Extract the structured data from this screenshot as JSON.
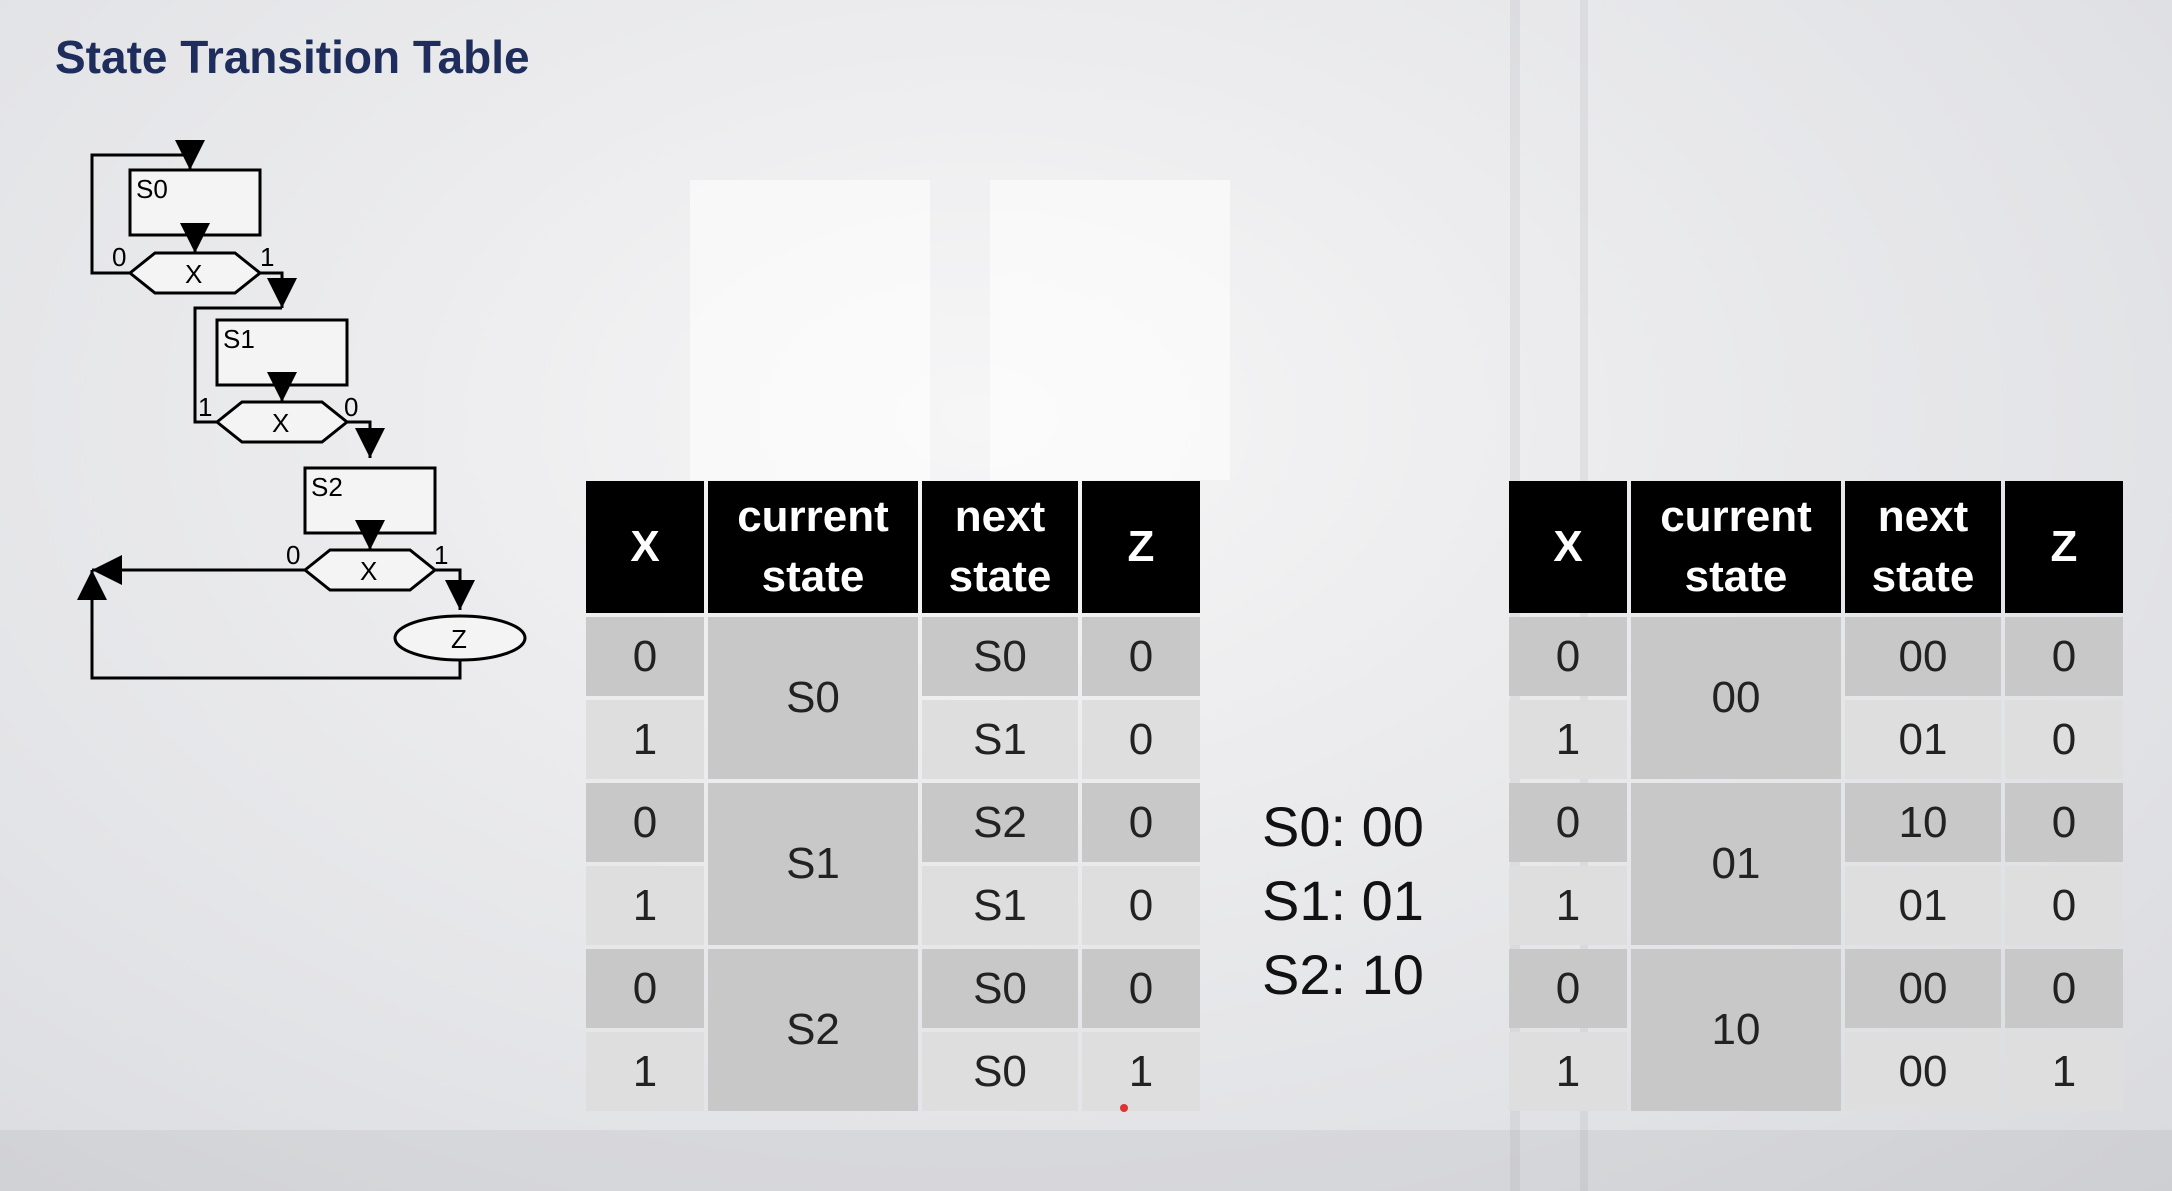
{
  "slide": {
    "title": "State Transition Table"
  },
  "diagram": {
    "states": [
      "S0",
      "S1",
      "S2"
    ],
    "decision": "X",
    "output": "Z",
    "branch_labels": {
      "x0_left": "0",
      "x0_right": "1",
      "x1_left": "1",
      "x1_right": "0",
      "x2_left": "0",
      "x2_right": "1"
    }
  },
  "table_names": {
    "headers": [
      "X",
      "current state",
      "next state",
      "Z"
    ],
    "groups": [
      {
        "current": "S0",
        "rows": [
          {
            "x": "0",
            "next": "S0",
            "z": "0"
          },
          {
            "x": "1",
            "next": "S1",
            "z": "0"
          }
        ]
      },
      {
        "current": "S1",
        "rows": [
          {
            "x": "0",
            "next": "S2",
            "z": "0"
          },
          {
            "x": "1",
            "next": "S1",
            "z": "0"
          }
        ]
      },
      {
        "current": "S2",
        "rows": [
          {
            "x": "0",
            "next": "S0",
            "z": "0"
          },
          {
            "x": "1",
            "next": "S0",
            "z": "1"
          }
        ]
      }
    ]
  },
  "encoding": [
    "S0: 00",
    "S1: 01",
    "S2: 10"
  ],
  "table_codes": {
    "headers": [
      "X",
      "current state",
      "next state",
      "Z"
    ],
    "groups": [
      {
        "current": "00",
        "rows": [
          {
            "x": "0",
            "next": "00",
            "z": "0"
          },
          {
            "x": "1",
            "next": "01",
            "z": "0"
          }
        ]
      },
      {
        "current": "01",
        "rows": [
          {
            "x": "0",
            "next": "10",
            "z": "0"
          },
          {
            "x": "1",
            "next": "01",
            "z": "0"
          }
        ]
      },
      {
        "current": "10",
        "rows": [
          {
            "x": "0",
            "next": "00",
            "z": "0"
          },
          {
            "x": "1",
            "next": "00",
            "z": "1"
          }
        ]
      }
    ]
  }
}
